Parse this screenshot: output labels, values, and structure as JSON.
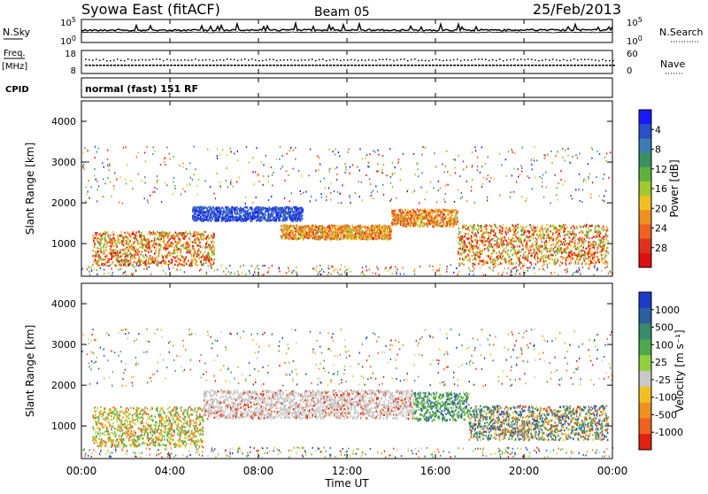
{
  "header": {
    "title": "Syowa East (fitACF)",
    "beam": "Beam 05",
    "date": "25/Feb/2013"
  },
  "nsky_panel": {
    "left_label": "N.Sky",
    "right_label": "N.Search",
    "left_ticks": [
      "10^5",
      "10^0"
    ],
    "right_ticks": [
      "10^5",
      "10^0"
    ]
  },
  "freq_panel": {
    "left_label_1": "Freq.",
    "left_label_2": "[MHz]",
    "right_label": "Nave",
    "left_ticks": [
      "18",
      "8"
    ],
    "right_ticks": [
      "60",
      "0"
    ]
  },
  "cpid": {
    "label": "CPID",
    "mode": "normal (fast) 151 RF"
  },
  "x_axis": {
    "label": "Time UT",
    "ticks": [
      "00:00",
      "04:00",
      "08:00",
      "12:00",
      "16:00",
      "20:00",
      "00:00"
    ]
  },
  "chart_data": [
    {
      "type": "heatmap",
      "name": "power",
      "ylabel": "Slant Range [km]",
      "yticks": [
        1000,
        2000,
        3000,
        4000
      ],
      "ylim": [
        200,
        4500
      ],
      "xlim_hours": [
        0,
        24
      ],
      "colorbar": {
        "label": "Power [dB]",
        "ticks": [
          "4",
          "8",
          "12",
          "16",
          "20",
          "24",
          "28"
        ],
        "colors": [
          "#1a1aff",
          "#2850c8",
          "#3c7ab4",
          "#3c9060",
          "#60b040",
          "#a0c830",
          "#f0c020",
          "#f09020",
          "#f06020",
          "#e03020",
          "#e01010"
        ]
      },
      "echo_bands": [
        {
          "t_start": 0.5,
          "t_end": 6,
          "range_center": 900,
          "range_width": 600,
          "dominant": "orange-red"
        },
        {
          "t_start": 5,
          "t_end": 10,
          "range_center": 1750,
          "range_width": 250,
          "dominant": "blue"
        },
        {
          "t_start": 9,
          "t_end": 14,
          "range_center": 1300,
          "range_width": 250,
          "dominant": "orange"
        },
        {
          "t_start": 14,
          "t_end": 17,
          "range_center": 1650,
          "range_width": 300,
          "dominant": "orange"
        },
        {
          "t_start": 17,
          "t_end": 23.8,
          "range_center": 1000,
          "range_width": 700,
          "dominant": "orange-red"
        }
      ]
    },
    {
      "type": "heatmap",
      "name": "velocity",
      "ylabel": "Slant Range [km]",
      "yticks": [
        1000,
        2000,
        3000,
        4000
      ],
      "ylim": [
        200,
        4500
      ],
      "xlim_hours": [
        0,
        24
      ],
      "colorbar": {
        "label": "Velocity [m s⁻¹]",
        "ticks": [
          "1000",
          "500",
          "100",
          "25",
          "-25",
          "-100",
          "-500",
          "-1000"
        ],
        "colors": [
          "#1a3cc8",
          "#2860a0",
          "#3c8a6c",
          "#50a84c",
          "#90d040",
          "#c8c8c8",
          "#f0c020",
          "#f09020",
          "#f06020",
          "#e02010"
        ]
      },
      "echo_bands": [
        {
          "t_start": 0.5,
          "t_end": 5.5,
          "range_center": 1000,
          "range_width": 700,
          "dominant": "orange-green"
        },
        {
          "t_start": 5.5,
          "t_end": 15,
          "range_center": 1550,
          "range_width": 500,
          "dominant": "grey"
        },
        {
          "t_start": 15,
          "t_end": 17.5,
          "range_center": 1500,
          "range_width": 500,
          "dominant": "green"
        },
        {
          "t_start": 17.5,
          "t_end": 23.8,
          "range_center": 1100,
          "range_width": 600,
          "dominant": "green-orange"
        }
      ]
    }
  ]
}
